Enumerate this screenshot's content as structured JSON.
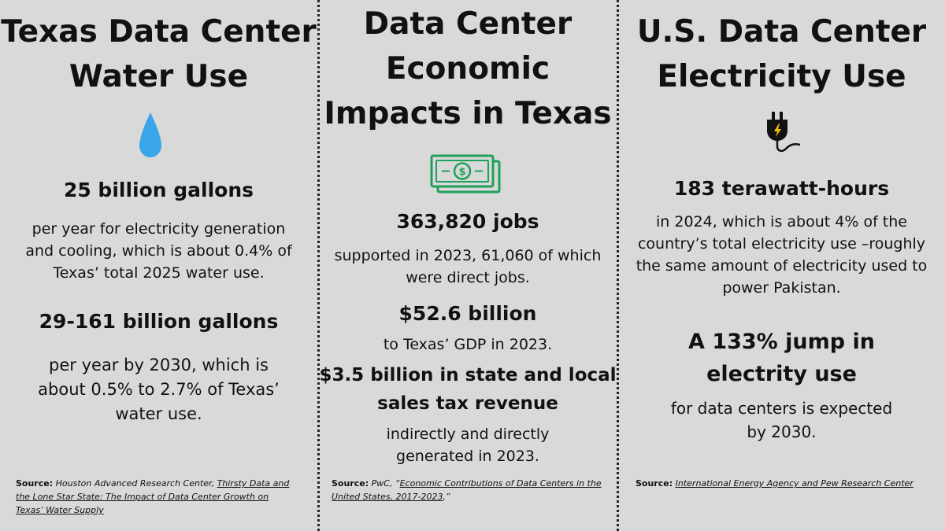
{
  "colors": {
    "background": "#d9d9d9",
    "drop": "#3aa5e8",
    "money": "#1fa05a",
    "text": "#111111"
  },
  "col1": {
    "title_line1": "Texas Data Center",
    "title_line2": "Water Use",
    "icon": "water-drop-icon",
    "stat1": "25 billion gallons",
    "desc1_l1": "per year for electricity generation",
    "desc1_l2": "and cooling, which is about 0.4% of",
    "desc1_l3": "Texas’ total 2025 water use.",
    "stat2": "29-161 billion gallons",
    "desc2_l1": "per year by 2030, which is",
    "desc2_l2": "about 0.5% to 2.7% of  Texas’",
    "desc2_l3": "water use.",
    "source_label": "Source:",
    "source_org": "Houston Advanced Research Center,",
    "source_link": "Thirsty Data and the Lone Star State: The Impact of Data Center Growth on Texas’ Water Supply"
  },
  "col2": {
    "title_line1": "Data Center",
    "title_line2": "Economic",
    "title_line3": "Impacts in Texas",
    "icon": "money-bills-icon",
    "stat1": "363,820 jobs",
    "desc1_l1": "supported in 2023, 61,060 of which",
    "desc1_l2": "were direct jobs.",
    "stat2": "$52.6 billion",
    "desc2_l1": "to Texas’ GDP in 2023.",
    "stat3_l1": "$3.5 billion in state and local",
    "stat3_l2": "sales tax revenue",
    "desc3_l1": "indirectly and directly",
    "desc3_l2": "generated in 2023.",
    "source_label": "Source:",
    "source_org": "PwC, “",
    "source_link": "Economic Contributions of Data Centers in the United States, 2017-2023",
    "source_tail": ",”"
  },
  "col3": {
    "title_line1": "U.S. Data Center",
    "title_line2": "Electricity Use",
    "icon": "electric-plug-icon",
    "stat1": "183 terawatt-hours",
    "desc1_l1": "in 2024, which is about 4% of the",
    "desc1_l2": "country’s total electricity use –roughly",
    "desc1_l3": "the same amount of electricity used to",
    "desc1_l4": "power Pakistan.",
    "stat2_l1": "A 133% jump in",
    "stat2_l2": "electrity use",
    "desc2_l1": "for data centers is expected",
    "desc2_l2": "by 2030.",
    "source_label": "Source:",
    "source_link": "International Energy Agency and Pew Research Center"
  }
}
